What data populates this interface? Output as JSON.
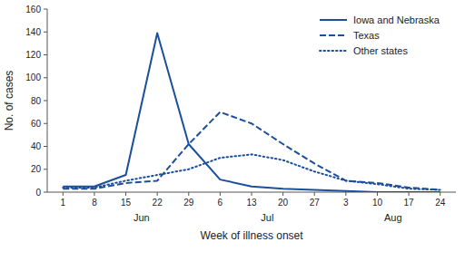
{
  "chart_data": {
    "type": "line",
    "categories": [
      "1",
      "8",
      "15",
      "22",
      "29",
      "6",
      "13",
      "20",
      "27",
      "3",
      "10",
      "17",
      "24"
    ],
    "series": [
      {
        "name": "Iowa and Nebraska",
        "color": "#1B4F9B",
        "line_style": "solid",
        "values": [
          5,
          5,
          15,
          139,
          42,
          11,
          5,
          3,
          2,
          1,
          0,
          0,
          0
        ]
      },
      {
        "name": "Texas",
        "color": "#1B4F9B",
        "line_style": "dashed",
        "values": [
          3,
          3,
          8,
          10,
          42,
          70,
          60,
          42,
          25,
          10,
          8,
          4,
          2
        ]
      },
      {
        "name": "Other states",
        "color": "#1B4F9B",
        "line_style": "dotted",
        "values": [
          4,
          4,
          10,
          15,
          20,
          30,
          33,
          28,
          18,
          10,
          7,
          3,
          2
        ]
      }
    ],
    "annotations": [
      {
        "text": "Jun",
        "x": 2.5
      },
      {
        "text": "Jul",
        "x": 6.5
      },
      {
        "text": "Aug",
        "x": 10.5
      }
    ],
    "ylabel": "No. of cases",
    "xlabel": "Week of illness onset",
    "ylim": [
      0,
      160
    ],
    "yticks": [
      0,
      20,
      40,
      60,
      80,
      100,
      120,
      140,
      160
    ],
    "grid": false,
    "legend": "upper right"
  }
}
